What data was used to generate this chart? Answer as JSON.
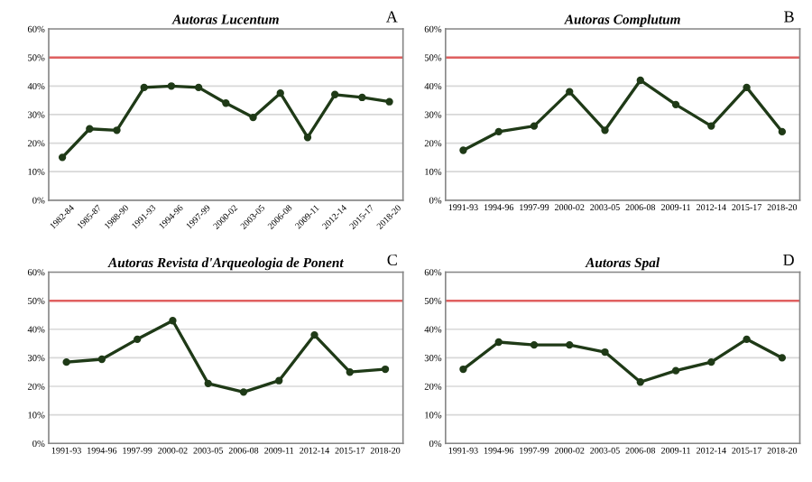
{
  "chart_data": [
    {
      "type": "line",
      "title": "Autoras Lucentum",
      "annotations": [
        "A"
      ],
      "categories": [
        "1982-84",
        "1985-87",
        "1988-90",
        "1991-93",
        "1994-96",
        "1997-99",
        "2000-02",
        "2003-05",
        "2006-08",
        "2009-11",
        "2012-14",
        "2015-17",
        "2018-20"
      ],
      "series": [
        {
          "color": "#1f3a17",
          "values": [
            15,
            25,
            24.5,
            39.5,
            40,
            39.5,
            34,
            29,
            37.5,
            22,
            37,
            36,
            34.5
          ]
        }
      ],
      "ylim": [
        0,
        60
      ],
      "yticks": [
        {
          "value": 0,
          "label": "0%"
        },
        {
          "value": 10,
          "label": "10%"
        },
        {
          "value": 20,
          "label": "20%"
        },
        {
          "value": 30,
          "label": "30%"
        },
        {
          "value": 40,
          "label": "40%"
        },
        {
          "value": 50,
          "label": "50%"
        },
        {
          "value": 60,
          "label": "60%"
        }
      ],
      "ref_lines": [
        {
          "axis": "y",
          "value": 50,
          "color": "#e06060"
        }
      ],
      "grid": "y",
      "marker": "circle",
      "line_style": "solid",
      "legend": false
    },
    {
      "type": "line",
      "title": "Autoras Complutum",
      "annotations": [
        "B"
      ],
      "categories": [
        "1991-93",
        "1994-96",
        "1997-99",
        "2000-02",
        "2003-05",
        "2006-08",
        "2009-11",
        "2012-14",
        "2015-17",
        "2018-20"
      ],
      "series": [
        {
          "color": "#1f3a17",
          "values": [
            17.5,
            24,
            26,
            38,
            24.5,
            42,
            33.5,
            26,
            39.5,
            24
          ]
        }
      ],
      "ylim": [
        0,
        60
      ],
      "yticks": [
        {
          "value": 0,
          "label": "0%"
        },
        {
          "value": 10,
          "label": "10%"
        },
        {
          "value": 20,
          "label": "20%"
        },
        {
          "value": 30,
          "label": "30%"
        },
        {
          "value": 40,
          "label": "40%"
        },
        {
          "value": 50,
          "label": "50%"
        },
        {
          "value": 60,
          "label": "60%"
        }
      ],
      "ref_lines": [
        {
          "axis": "y",
          "value": 50,
          "color": "#e06060"
        }
      ],
      "grid": "y",
      "marker": "circle",
      "line_style": "solid",
      "legend": false
    },
    {
      "type": "line",
      "title": "Autoras Revista d'Arqueologia de Ponent",
      "annotations": [
        "C"
      ],
      "categories": [
        "1991-93",
        "1994-96",
        "1997-99",
        "2000-02",
        "2003-05",
        "2006-08",
        "2009-11",
        "2012-14",
        "2015-17",
        "2018-20"
      ],
      "series": [
        {
          "color": "#1f3a17",
          "values": [
            28.5,
            29.5,
            36.5,
            43,
            21,
            18,
            22,
            38,
            25,
            26
          ]
        }
      ],
      "ylim": [
        0,
        60
      ],
      "yticks": [
        {
          "value": 0,
          "label": "0%"
        },
        {
          "value": 10,
          "label": "10%"
        },
        {
          "value": 20,
          "label": "20%"
        },
        {
          "value": 30,
          "label": "30%"
        },
        {
          "value": 40,
          "label": "40%"
        },
        {
          "value": 50,
          "label": "50%"
        },
        {
          "value": 60,
          "label": "60%"
        }
      ],
      "ref_lines": [
        {
          "axis": "y",
          "value": 50,
          "color": "#e06060"
        }
      ],
      "grid": "y",
      "marker": "circle",
      "line_style": "solid",
      "legend": false
    },
    {
      "type": "line",
      "title": "Autoras Spal",
      "annotations": [
        "D"
      ],
      "categories": [
        "1991-93",
        "1994-96",
        "1997-99",
        "2000-02",
        "2003-05",
        "2006-08",
        "2009-11",
        "2012-14",
        "2015-17",
        "2018-20"
      ],
      "series": [
        {
          "color": "#1f3a17",
          "values": [
            26,
            35.5,
            34.5,
            34.5,
            32,
            21.5,
            25.5,
            28.5,
            36.5,
            30
          ]
        }
      ],
      "ylim": [
        0,
        60
      ],
      "yticks": [
        {
          "value": 0,
          "label": "0%"
        },
        {
          "value": 10,
          "label": "10%"
        },
        {
          "value": 20,
          "label": "20%"
        },
        {
          "value": 30,
          "label": "30%"
        },
        {
          "value": 40,
          "label": "40%"
        },
        {
          "value": 50,
          "label": "50%"
        },
        {
          "value": 60,
          "label": "60%"
        }
      ],
      "ref_lines": [
        {
          "axis": "y",
          "value": 50,
          "color": "#e06060"
        }
      ],
      "grid": "y",
      "marker": "circle",
      "line_style": "solid",
      "legend": false
    }
  ]
}
